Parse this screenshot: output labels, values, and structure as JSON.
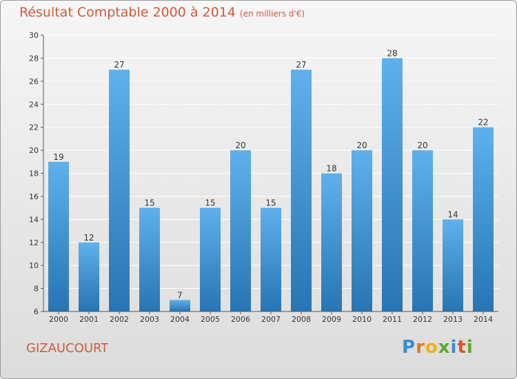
{
  "title": "Résultat Comptable 2000 à 2014",
  "subtitle": "(en milliers d'€)",
  "town": "GIZAUCOURT",
  "logo": {
    "letters": [
      "P",
      "r",
      "o",
      "x",
      "i",
      "t",
      "i"
    ],
    "colors": [
      "#2f8fd6",
      "#e07a1f",
      "#f2b11a",
      "#5fa82f",
      "#3d8bd6",
      "#e0542a",
      "#5fa82f"
    ]
  },
  "colors": {
    "bar_top": "#5fb0ec",
    "bar_bottom": "#2775b4",
    "title": "#cf5a3c",
    "grid": "#ffffff"
  },
  "chart_data": {
    "type": "bar",
    "categories": [
      "2000",
      "2001",
      "2002",
      "2003",
      "2004",
      "2005",
      "2006",
      "2007",
      "2008",
      "2009",
      "2010",
      "2011",
      "2012",
      "2013",
      "2014"
    ],
    "values": [
      19,
      12,
      27,
      15,
      7,
      15,
      20,
      15,
      27,
      18,
      20,
      28,
      20,
      14,
      22
    ],
    "title": "Résultat Comptable 2000 à 2014",
    "subtitle": "(en milliers d'€)",
    "ylim": [
      6,
      30
    ],
    "yticks": [
      6,
      8,
      10,
      12,
      14,
      16,
      18,
      20,
      22,
      24,
      26,
      28,
      30
    ],
    "grid": true
  }
}
